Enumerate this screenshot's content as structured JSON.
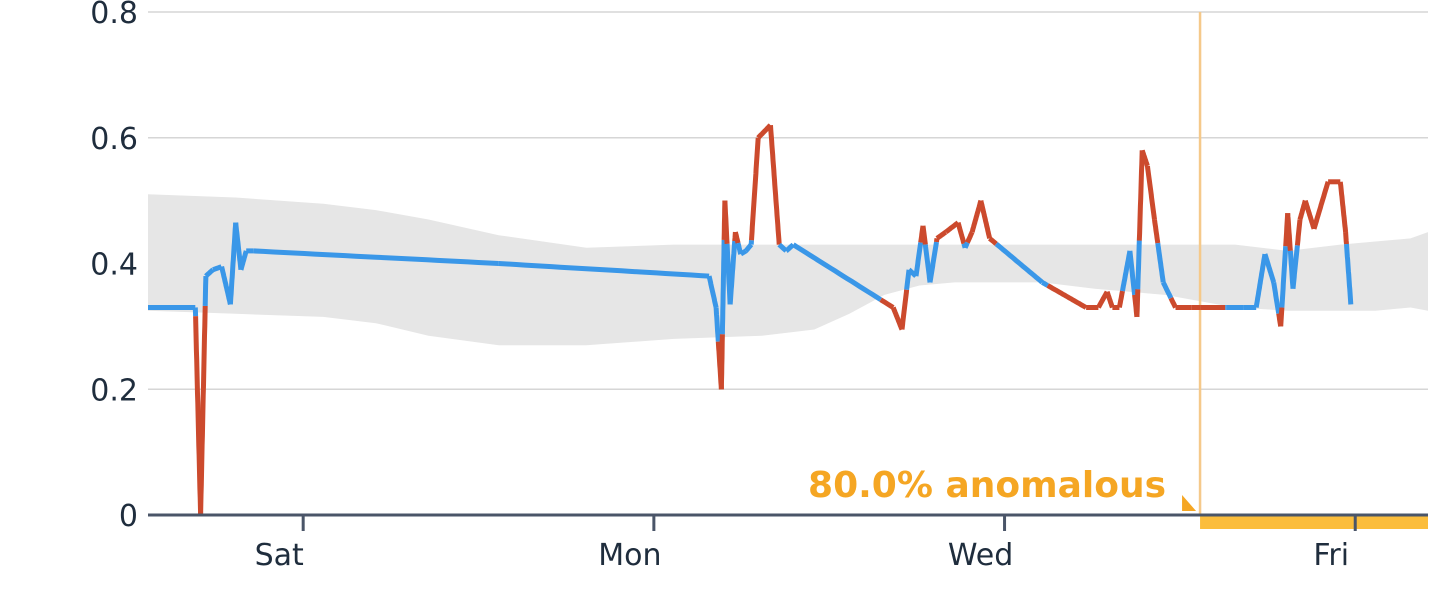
{
  "chart_data": {
    "type": "line",
    "title": "",
    "xlabel": "",
    "ylabel": "",
    "x_unit": "days",
    "xlim": [
      0,
      7.3
    ],
    "ylim": [
      0,
      0.8
    ],
    "grid": true,
    "legend": "none",
    "y_ticks": [
      {
        "value": 0,
        "label": "0"
      },
      {
        "value": 0.2,
        "label": "0.2"
      },
      {
        "value": 0.4,
        "label": "0.4"
      },
      {
        "value": 0.6,
        "label": "0.6"
      },
      {
        "value": 0.8,
        "label": "0.8"
      }
    ],
    "x_ticks": [
      {
        "value": 0.885,
        "label": "Sat"
      },
      {
        "value": 2.885,
        "label": "Mon"
      },
      {
        "value": 4.885,
        "label": "Wed"
      },
      {
        "value": 6.885,
        "label": "Fri"
      }
    ],
    "colors": {
      "normal": "#3a97e8",
      "anomalous": "#cc4a2d",
      "band": "#e6e6e6",
      "highlight": "#fbbd3c",
      "highlight_line": "#f5c98a",
      "annotation": "#f5a623",
      "grid": "#d6d6d6",
      "axis": "#4a5568"
    },
    "expected_band": {
      "x": [
        0,
        0.5,
        1,
        1.3,
        1.6,
        2.0,
        2.5,
        3.0,
        3.5,
        3.8,
        4.0,
        4.2,
        4.4,
        4.6,
        4.8,
        5.1,
        5.4,
        5.8,
        6.2,
        6.5,
        6.8,
        7.0,
        7.2,
        7.3
      ],
      "upper": [
        0.51,
        0.505,
        0.495,
        0.485,
        0.47,
        0.445,
        0.425,
        0.43,
        0.43,
        0.43,
        0.43,
        0.43,
        0.43,
        0.43,
        0.43,
        0.43,
        0.43,
        0.43,
        0.43,
        0.42,
        0.43,
        0.435,
        0.44,
        0.45
      ],
      "lower": [
        0.325,
        0.32,
        0.315,
        0.305,
        0.285,
        0.27,
        0.27,
        0.28,
        0.285,
        0.295,
        0.32,
        0.35,
        0.365,
        0.37,
        0.37,
        0.37,
        0.36,
        0.35,
        0.33,
        0.325,
        0.325,
        0.325,
        0.33,
        0.325
      ]
    },
    "series": [
      {
        "x": [
          0,
          0.27,
          0.3,
          0.33,
          0.37,
          0.42,
          0.47,
          0.5,
          0.53,
          0.56,
          0.6,
          2.0,
          3.2,
          3.24,
          3.27,
          3.29,
          3.32,
          3.35,
          3.38,
          3.41,
          3.44,
          3.48,
          3.55,
          3.6,
          3.64,
          3.68,
          4.25,
          4.3,
          4.34,
          4.38,
          4.42,
          4.46,
          4.5,
          4.55,
          4.62,
          4.66,
          4.7,
          4.75,
          4.8,
          5.1,
          5.35,
          5.42,
          5.47,
          5.5,
          5.54,
          5.6,
          5.64,
          5.67,
          5.7,
          5.74,
          5.79,
          5.86,
          5.95,
          6.0,
          6.15,
          6.25,
          6.32,
          6.37,
          6.42,
          6.46,
          6.5,
          6.53,
          6.57,
          6.6,
          6.65,
          6.73,
          6.8,
          6.83,
          6.86
        ],
        "y": [
          0.33,
          0.33,
          0.0,
          0.38,
          0.39,
          0.395,
          0.335,
          0.465,
          0.39,
          0.42,
          0.42,
          0.4,
          0.38,
          0.33,
          0.2,
          0.5,
          0.335,
          0.45,
          0.415,
          0.42,
          0.43,
          0.6,
          0.62,
          0.43,
          0.42,
          0.43,
          0.33,
          0.295,
          0.39,
          0.38,
          0.46,
          0.37,
          0.44,
          0.45,
          0.465,
          0.425,
          0.45,
          0.5,
          0.44,
          0.37,
          0.33,
          0.33,
          0.355,
          0.33,
          0.33,
          0.42,
          0.315,
          0.58,
          0.555,
          0.47,
          0.37,
          0.33,
          0.33,
          0.33,
          0.33,
          0.33,
          0.33,
          0.415,
          0.37,
          0.3,
          0.48,
          0.36,
          0.47,
          0.5,
          0.455,
          0.53,
          0.53,
          0.45,
          0.335
        ]
      }
    ],
    "anomaly_highlight": {
      "x_start": 6.0,
      "x_end": 7.3,
      "label": "80.0% anomalous"
    }
  }
}
